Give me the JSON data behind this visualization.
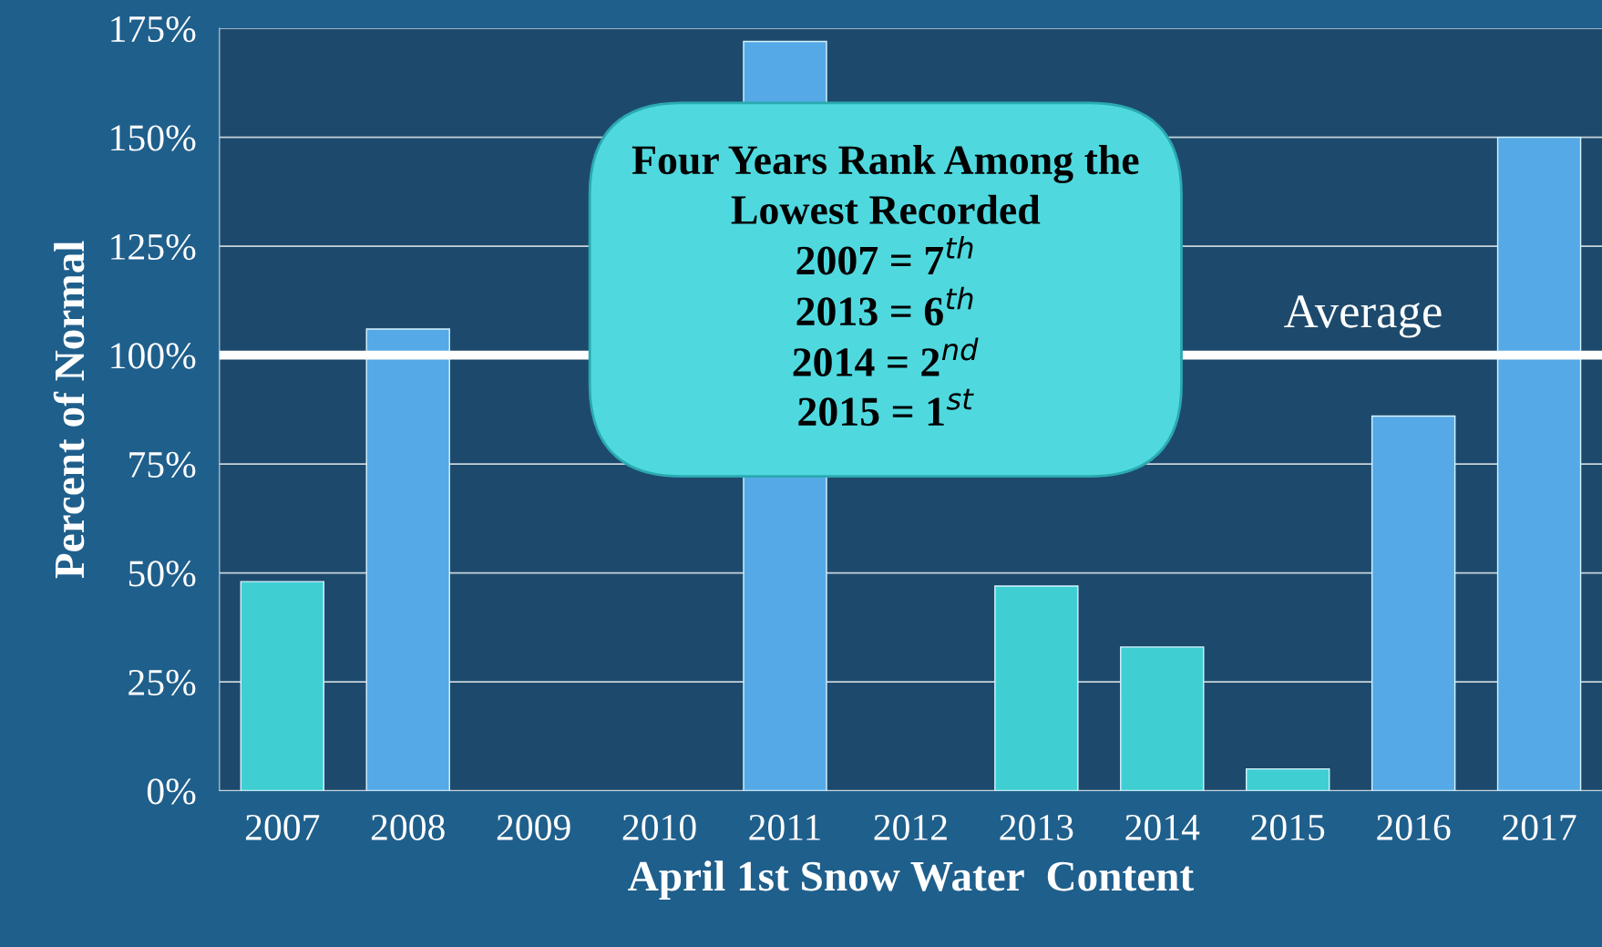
{
  "chart_data": {
    "type": "bar",
    "xlabel": "April 1st Snow Water  Content",
    "ylabel": "Percent of Normal",
    "categories": [
      "2007",
      "2008",
      "2009",
      "2010",
      "2011",
      "2012",
      "2013",
      "2014",
      "2015",
      "2016",
      "2017"
    ],
    "values": [
      48,
      106,
      null,
      null,
      172,
      null,
      47,
      33,
      5,
      86,
      150
    ],
    "colors": [
      "#3fcfd3",
      "#55a9e6",
      "#55a9e6",
      "#55a9e6",
      "#55a9e6",
      "#55a9e6",
      "#3fcfd3",
      "#3fcfd3",
      "#3fcfd3",
      "#55a9e6",
      "#55a9e6"
    ],
    "ylim": [
      0,
      175
    ],
    "yticks": [
      {
        "value": 0,
        "label": "0%"
      },
      {
        "value": 25,
        "label": "25%"
      },
      {
        "value": 50,
        "label": "50%"
      },
      {
        "value": 75,
        "label": "75%"
      },
      {
        "value": 100,
        "label": "100%"
      },
      {
        "value": 125,
        "label": "125%"
      },
      {
        "value": 150,
        "label": "150%"
      },
      {
        "value": 175,
        "label": "175%"
      }
    ],
    "grid": "y",
    "ref_lines": [
      {
        "axis": "y",
        "value": 100,
        "label": "Average",
        "color": "#ffffff"
      }
    ],
    "annotations": [
      "Four Years Rank Among the\nLowest Recorded\n2007 = 7$^{th}$\n2013 = 6$^{th}$\n2014 = 2$^{nd}$\n2015 = 1$^{st}$"
    ]
  }
}
